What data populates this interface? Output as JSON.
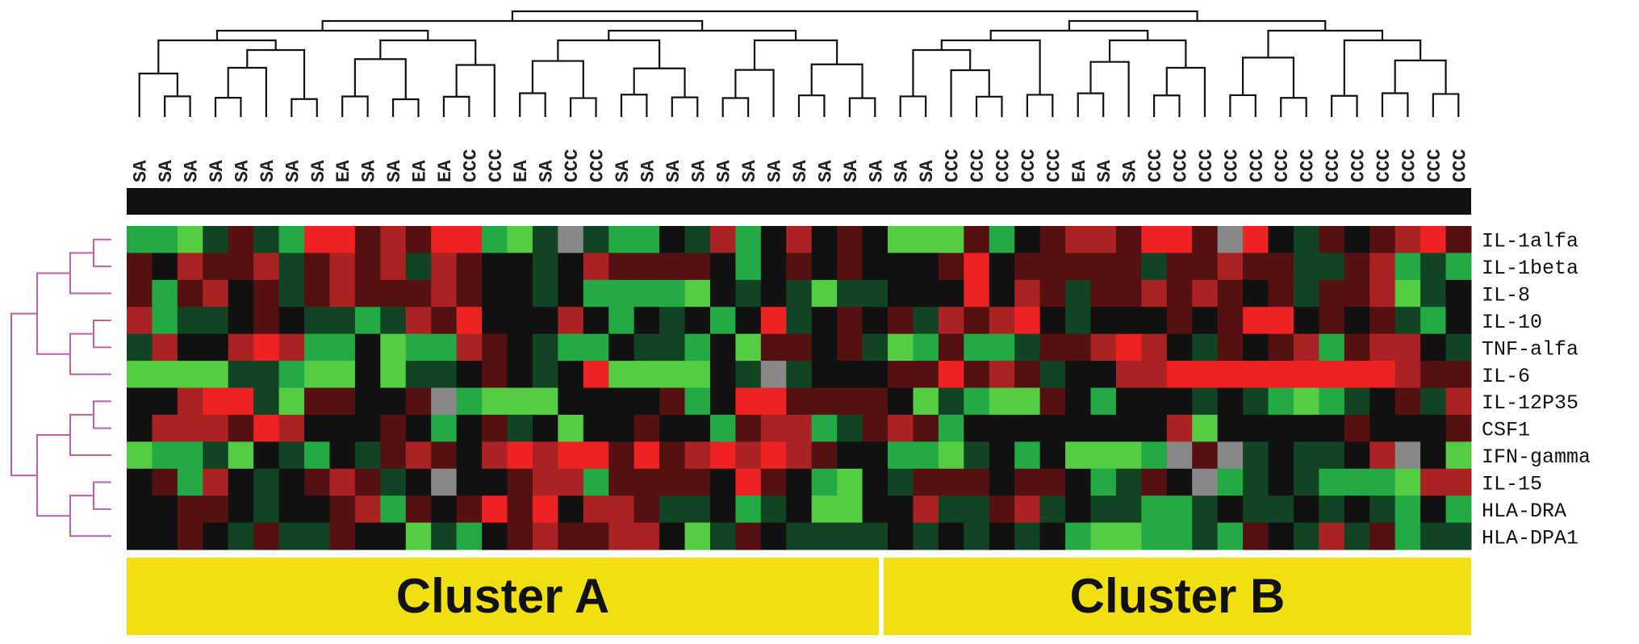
{
  "columns": [
    "SA",
    "SA",
    "SA",
    "SA",
    "SA",
    "SA",
    "SA",
    "SA",
    "EA",
    "SA",
    "SA",
    "EA",
    "EA",
    "CCC",
    "CCC",
    "EA",
    "SA",
    "CCC",
    "CCC",
    "SA",
    "SA",
    "SA",
    "SA",
    "SA",
    "SA",
    "SA",
    "SA",
    "SA",
    "SA",
    "SA",
    "SA",
    "SA",
    "CCC",
    "CCC",
    "CCC",
    "CCC",
    "CCC",
    "EA",
    "SA",
    "SA",
    "CCC",
    "CCC",
    "CCC",
    "CCC",
    "CCC",
    "CCC",
    "CCC",
    "CCC",
    "CCC",
    "CCC",
    "CCC",
    "CCC",
    "CCC"
  ],
  "rows": [
    {
      "label": "IL-1alfa",
      "colors": [
        "#2a4",
        "#2a4",
        "#5c4",
        "#142",
        "#511",
        "#142",
        "#2a4",
        "#e22",
        "#e22",
        "#511",
        "#a22",
        "#511",
        "#e22",
        "#e22",
        "#2a4",
        "#5c4",
        "#142",
        "#888",
        "#142",
        "#2a4",
        "#2a4",
        "#111",
        "#142",
        "#a22",
        "#2a4",
        "#111",
        "#a22",
        "#111",
        "#511",
        "#111",
        "#5c4",
        "#5c4",
        "#5c4",
        "#511",
        "#2a4",
        "#111",
        "#511",
        "#a22",
        "#a22",
        "#511",
        "#e22",
        "#e22",
        "#511",
        "#888",
        "#e22",
        "#111",
        "#142",
        "#511",
        "#111",
        "#511",
        "#a22",
        "#e22",
        "#511"
      ]
    },
    {
      "label": "IL-1beta",
      "colors": [
        "#511",
        "#111",
        "#a22",
        "#511",
        "#511",
        "#a22",
        "#142",
        "#511",
        "#a22",
        "#511",
        "#a22",
        "#142",
        "#a22",
        "#511",
        "#111",
        "#111",
        "#142",
        "#111",
        "#a22",
        "#511",
        "#511",
        "#511",
        "#511",
        "#111",
        "#2a4",
        "#111",
        "#511",
        "#111",
        "#511",
        "#111",
        "#111",
        "#111",
        "#511",
        "#e22",
        "#111",
        "#511",
        "#511",
        "#511",
        "#511",
        "#511",
        "#142",
        "#511",
        "#511",
        "#a22",
        "#511",
        "#511",
        "#142",
        "#142",
        "#511",
        "#a22",
        "#2a4",
        "#142",
        "#2a4"
      ]
    },
    {
      "label": "IL-8",
      "colors": [
        "#511",
        "#2a4",
        "#511",
        "#a22",
        "#111",
        "#511",
        "#142",
        "#511",
        "#a22",
        "#511",
        "#511",
        "#511",
        "#a22",
        "#511",
        "#111",
        "#111",
        "#142",
        "#111",
        "#2a4",
        "#2a4",
        "#2a4",
        "#2a4",
        "#5c4",
        "#111",
        "#142",
        "#111",
        "#142",
        "#5c4",
        "#142",
        "#142",
        "#111",
        "#111",
        "#111",
        "#e22",
        "#111",
        "#a22",
        "#511",
        "#142",
        "#511",
        "#511",
        "#a22",
        "#511",
        "#a22",
        "#511",
        "#111",
        "#511",
        "#142",
        "#511",
        "#511",
        "#a22",
        "#5c4",
        "#142",
        "#111"
      ]
    },
    {
      "label": "IL-10",
      "colors": [
        "#a22",
        "#2a4",
        "#142",
        "#142",
        "#111",
        "#511",
        "#111",
        "#142",
        "#142",
        "#2a4",
        "#142",
        "#a22",
        "#511",
        "#e22",
        "#111",
        "#111",
        "#111",
        "#a22",
        "#111",
        "#2a4",
        "#111",
        "#142",
        "#111",
        "#2a4",
        "#111",
        "#e22",
        "#142",
        "#111",
        "#511",
        "#111",
        "#511",
        "#142",
        "#a22",
        "#511",
        "#a22",
        "#e22",
        "#111",
        "#142",
        "#111",
        "#111",
        "#111",
        "#511",
        "#111",
        "#511",
        "#e22",
        "#e22",
        "#111",
        "#511",
        "#111",
        "#511",
        "#142",
        "#2a4",
        "#111"
      ]
    },
    {
      "label": "TNF-alfa",
      "colors": [
        "#142",
        "#a22",
        "#111",
        "#111",
        "#a22",
        "#e22",
        "#a22",
        "#2a4",
        "#2a4",
        "#111",
        "#5c4",
        "#2a4",
        "#2a4",
        "#a22",
        "#511",
        "#111",
        "#142",
        "#2a4",
        "#2a4",
        "#111",
        "#142",
        "#142",
        "#2a4",
        "#111",
        "#5c4",
        "#511",
        "#511",
        "#111",
        "#511",
        "#142",
        "#5c4",
        "#2a4",
        "#511",
        "#2a4",
        "#2a4",
        "#142",
        "#511",
        "#511",
        "#a22",
        "#e22",
        "#a22",
        "#111",
        "#142",
        "#511",
        "#111",
        "#511",
        "#a22",
        "#2a4",
        "#511",
        "#a22",
        "#a22",
        "#111",
        "#142"
      ]
    },
    {
      "label": "IL-6",
      "colors": [
        "#5c4",
        "#5c4",
        "#5c4",
        "#5c4",
        "#142",
        "#142",
        "#2a4",
        "#5c4",
        "#5c4",
        "#111",
        "#5c4",
        "#142",
        "#142",
        "#111",
        "#511",
        "#111",
        "#142",
        "#111",
        "#e22",
        "#5c4",
        "#5c4",
        "#5c4",
        "#5c4",
        "#111",
        "#142",
        "#888",
        "#142",
        "#111",
        "#111",
        "#111",
        "#511",
        "#511",
        "#e22",
        "#511",
        "#a22",
        "#511",
        "#142",
        "#111",
        "#111",
        "#a22",
        "#a22",
        "#e22",
        "#e22",
        "#e22",
        "#e22",
        "#e22",
        "#e22",
        "#e22",
        "#e22",
        "#e22",
        "#a22",
        "#511",
        "#511"
      ]
    },
    {
      "label": "IL-12P35",
      "colors": [
        "#111",
        "#111",
        "#a22",
        "#e22",
        "#e22",
        "#142",
        "#5c4",
        "#511",
        "#511",
        "#111",
        "#111",
        "#511",
        "#888",
        "#2a4",
        "#5c4",
        "#5c4",
        "#5c4",
        "#111",
        "#111",
        "#111",
        "#111",
        "#511",
        "#2a4",
        "#111",
        "#e22",
        "#e22",
        "#511",
        "#511",
        "#511",
        "#511",
        "#111",
        "#5c4",
        "#142",
        "#2a4",
        "#5c4",
        "#5c4",
        "#511",
        "#111",
        "#2a4",
        "#111",
        "#111",
        "#111",
        "#142",
        "#111",
        "#142",
        "#2a4",
        "#5c4",
        "#2a4",
        "#142",
        "#111",
        "#511",
        "#142",
        "#a22"
      ]
    },
    {
      "label": "CSF1",
      "colors": [
        "#111",
        "#a22",
        "#a22",
        "#a22",
        "#511",
        "#e22",
        "#a22",
        "#111",
        "#111",
        "#111",
        "#511",
        "#111",
        "#2a4",
        "#111",
        "#511",
        "#142",
        "#111",
        "#5c4",
        "#111",
        "#111",
        "#511",
        "#111",
        "#111",
        "#2a4",
        "#511",
        "#a22",
        "#a22",
        "#2a4",
        "#142",
        "#511",
        "#a22",
        "#511",
        "#2a4",
        "#111",
        "#111",
        "#111",
        "#111",
        "#111",
        "#111",
        "#111",
        "#111",
        "#a22",
        "#5c4",
        "#111",
        "#111",
        "#111",
        "#111",
        "#111",
        "#511",
        "#111",
        "#111",
        "#111",
        "#511"
      ]
    },
    {
      "label": "IFN-gamma",
      "colors": [
        "#5c4",
        "#2a4",
        "#2a4",
        "#142",
        "#5c4",
        "#111",
        "#142",
        "#2a4",
        "#111",
        "#142",
        "#511",
        "#a22",
        "#511",
        "#111",
        "#a22",
        "#e22",
        "#a22",
        "#e22",
        "#e22",
        "#511",
        "#e22",
        "#511",
        "#a22",
        "#e22",
        "#a22",
        "#e22",
        "#a22",
        "#511",
        "#111",
        "#111",
        "#2a4",
        "#2a4",
        "#5c4",
        "#142",
        "#111",
        "#2a4",
        "#111",
        "#5c4",
        "#5c4",
        "#5c4",
        "#2a4",
        "#888",
        "#511",
        "#888",
        "#142",
        "#111",
        "#142",
        "#142",
        "#111",
        "#a22",
        "#888",
        "#111",
        "#5c4"
      ]
    },
    {
      "label": "IL-15",
      "colors": [
        "#111",
        "#511",
        "#2a4",
        "#a22",
        "#111",
        "#142",
        "#111",
        "#511",
        "#a22",
        "#511",
        "#142",
        "#111",
        "#888",
        "#111",
        "#111",
        "#511",
        "#a22",
        "#a22",
        "#2a4",
        "#511",
        "#511",
        "#511",
        "#511",
        "#111",
        "#e22",
        "#511",
        "#111",
        "#2a4",
        "#5c4",
        "#111",
        "#142",
        "#511",
        "#511",
        "#511",
        "#111",
        "#511",
        "#511",
        "#111",
        "#2a4",
        "#142",
        "#511",
        "#111",
        "#888",
        "#2a4",
        "#142",
        "#111",
        "#142",
        "#2a4",
        "#2a4",
        "#2a4",
        "#5c4",
        "#a22",
        "#a22"
      ]
    },
    {
      "label": "HLA-DRA",
      "colors": [
        "#111",
        "#111",
        "#511",
        "#511",
        "#111",
        "#142",
        "#111",
        "#111",
        "#511",
        "#a22",
        "#2a4",
        "#511",
        "#111",
        "#511",
        "#e22",
        "#511",
        "#e22",
        "#111",
        "#a22",
        "#a22",
        "#511",
        "#142",
        "#142",
        "#111",
        "#2a4",
        "#142",
        "#111",
        "#5c4",
        "#5c4",
        "#111",
        "#111",
        "#a22",
        "#142",
        "#142",
        "#511",
        "#a22",
        "#142",
        "#111",
        "#142",
        "#142",
        "#2a4",
        "#2a4",
        "#142",
        "#111",
        "#142",
        "#142",
        "#111",
        "#142",
        "#111",
        "#142",
        "#2a4",
        "#111",
        "#2a4"
      ]
    },
    {
      "label": "HLA-DPA1",
      "colors": [
        "#111",
        "#111",
        "#511",
        "#111",
        "#142",
        "#511",
        "#142",
        "#142",
        "#511",
        "#111",
        "#111",
        "#5c4",
        "#142",
        "#2a4",
        "#111",
        "#511",
        "#a22",
        "#511",
        "#511",
        "#a22",
        "#a22",
        "#111",
        "#5c4",
        "#142",
        "#511",
        "#111",
        "#142",
        "#142",
        "#142",
        "#142",
        "#111",
        "#142",
        "#111",
        "#142",
        "#111",
        "#142",
        "#111",
        "#2a4",
        "#5c4",
        "#5c4",
        "#2a4",
        "#2a4",
        "#142",
        "#2a4",
        "#511",
        "#111",
        "#142",
        "#a22",
        "#142",
        "#511",
        "#2a4",
        "#142",
        "#142"
      ]
    }
  ],
  "clusters": [
    "Cluster A",
    "Cluster B"
  ]
}
